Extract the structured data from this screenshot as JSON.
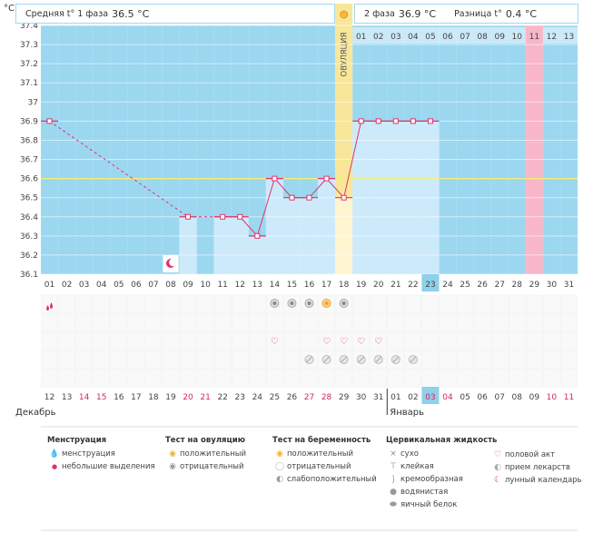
{
  "header": {
    "unit": "°C",
    "phase1_label": "Средняя t° 1 фаза",
    "phase1_value": "36.5 °C",
    "phase2_label": "2 фаза",
    "phase2_value": "36.9 °C",
    "diff_label": "Разница t°",
    "diff_value": "0.4 °C",
    "ovulation_label": "ОВУЛЯЦИЯ"
  },
  "chart_data": {
    "type": "line",
    "title": "",
    "ylabel": "°C",
    "ylim": [
      36.1,
      37.4
    ],
    "yticks": [
      "36.1",
      "36.2",
      "36.3",
      "36.4",
      "36.5",
      "36.6",
      "36.7",
      "36.8",
      "36.9",
      "37",
      "37.1",
      "37.2",
      "37.3",
      "37.4"
    ],
    "coverline": 36.6,
    "cycle_days": [
      "01",
      "02",
      "03",
      "04",
      "05",
      "06",
      "07",
      "08",
      "09",
      "10",
      "11",
      "12",
      "13",
      "14",
      "15",
      "16",
      "17",
      "18",
      "19",
      "20",
      "21",
      "22",
      "23",
      "24",
      "25",
      "26",
      "27",
      "28",
      "29",
      "30",
      "31"
    ],
    "dates": [
      "12",
      "13",
      "14",
      "15",
      "16",
      "17",
      "18",
      "19",
      "20",
      "21",
      "22",
      "23",
      "24",
      "25",
      "26",
      "27",
      "28",
      "29",
      "30",
      "31",
      "01",
      "02",
      "03",
      "04",
      "05",
      "06",
      "07",
      "08",
      "09",
      "10",
      "11"
    ],
    "red_dates": [
      2,
      3,
      8,
      9,
      15,
      16,
      22,
      23,
      29,
      30
    ],
    "today_index": 22,
    "months": [
      "Декабрь",
      "Январь"
    ],
    "phase2_days": [
      "01",
      "02",
      "03",
      "04",
      "05",
      "06",
      "07",
      "08",
      "09",
      "10",
      "11",
      "12",
      "13"
    ],
    "ovulation_day": 18,
    "highlight_day": 29,
    "series": [
      {
        "name": "temperature",
        "points": [
          [
            1,
            36.9
          ],
          [
            9,
            36.4
          ],
          [
            11,
            36.4
          ],
          [
            12,
            36.4
          ],
          [
            13,
            36.3
          ],
          [
            14,
            36.6
          ],
          [
            15,
            36.5
          ],
          [
            16,
            36.5
          ],
          [
            17,
            36.6
          ],
          [
            18,
            36.5
          ],
          [
            19,
            36.9
          ],
          [
            20,
            36.9
          ],
          [
            21,
            36.9
          ],
          [
            22,
            36.9
          ],
          [
            23,
            36.9
          ]
        ]
      }
    ],
    "markers": {
      "menstruation_days": [
        1
      ],
      "moon_days": [
        8
      ],
      "ovulation_test_negative_days": [
        14,
        15,
        16,
        18
      ],
      "ovulation_test_positive_days": [
        17
      ],
      "intercourse_days": [
        14,
        17,
        18,
        19,
        20
      ],
      "pregnancy_test_days": [
        16,
        17,
        18,
        19,
        20,
        21,
        22
      ]
    }
  },
  "legend": {
    "menstruation": {
      "title": "Менструация",
      "items": [
        "менструация",
        "небольшие выделения"
      ]
    },
    "ovulation_test": {
      "title": "Тест на овуляцию",
      "items": [
        "положительный",
        "отрицательный"
      ]
    },
    "pregnancy_test": {
      "title": "Тест на беременность",
      "items": [
        "положительный",
        "отрицательный",
        "слабоположительный"
      ]
    },
    "cervical": {
      "title": "Цервикальная жидкость",
      "items": [
        "сухо",
        "клейкая",
        "кремообразная",
        "водянистая",
        "яичный белок"
      ]
    },
    "other": {
      "items": [
        "половой акт",
        "прием лекарств",
        "лунный календарь"
      ]
    }
  },
  "colors": {
    "sky": "#9cd7f0",
    "bar": "#cdeafb",
    "pink": "#e0336b",
    "yellow": "#f8e79a",
    "highlight": "#f7b7c8",
    "today": "#8fd0ea",
    "redtext": "#d0285f"
  }
}
